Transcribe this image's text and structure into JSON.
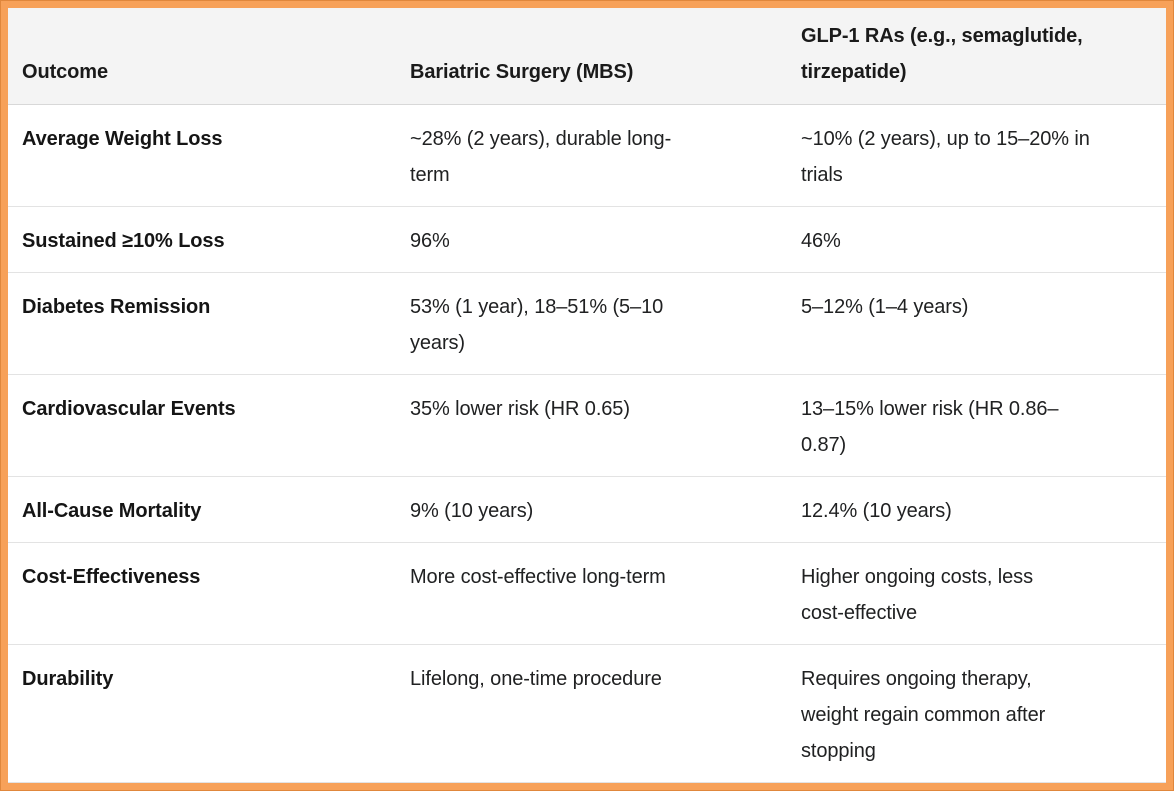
{
  "table": {
    "columns": [
      {
        "label": "Outcome"
      },
      {
        "label": "Bariatric Surgery (MBS)"
      },
      {
        "label": "GLP-1 RAs (e.g., semaglutide,\ntirzepatide)"
      }
    ],
    "rows": [
      {
        "outcome": "Average Weight Loss",
        "mbs": "~28% (2 years), durable long-\nterm",
        "glp1": "~10% (2 years), up to 15–20% in\ntrials"
      },
      {
        "outcome": "Sustained ≥10% Loss",
        "mbs": "96%",
        "glp1": "46%"
      },
      {
        "outcome": "Diabetes Remission",
        "mbs": "53% (1 year), 18–51% (5–10\nyears)",
        "glp1": "5–12% (1–4 years)"
      },
      {
        "outcome": "Cardiovascular Events",
        "mbs": "35% lower risk (HR 0.65)",
        "glp1": "13–15% lower risk (HR 0.86–\n0.87)"
      },
      {
        "outcome": "All-Cause Mortality",
        "mbs": "9% (10 years)",
        "glp1": "12.4% (10 years)"
      },
      {
        "outcome": "Cost-Effectiveness",
        "mbs": "More cost-effective long-term",
        "glp1": "Higher ongoing costs, less\ncost-effective"
      },
      {
        "outcome": "Durability",
        "mbs": "Lifelong, one-time procedure",
        "glp1": "Requires ongoing therapy,\nweight regain common after\nstopping"
      }
    ],
    "colors": {
      "frame_orange": "#F7A159",
      "frame_outline": "#E0873C",
      "header_bg": "#F4F4F4",
      "header_divider": "#D8D8D8",
      "row_divider": "#E3E3E3",
      "text": "#202122"
    }
  }
}
